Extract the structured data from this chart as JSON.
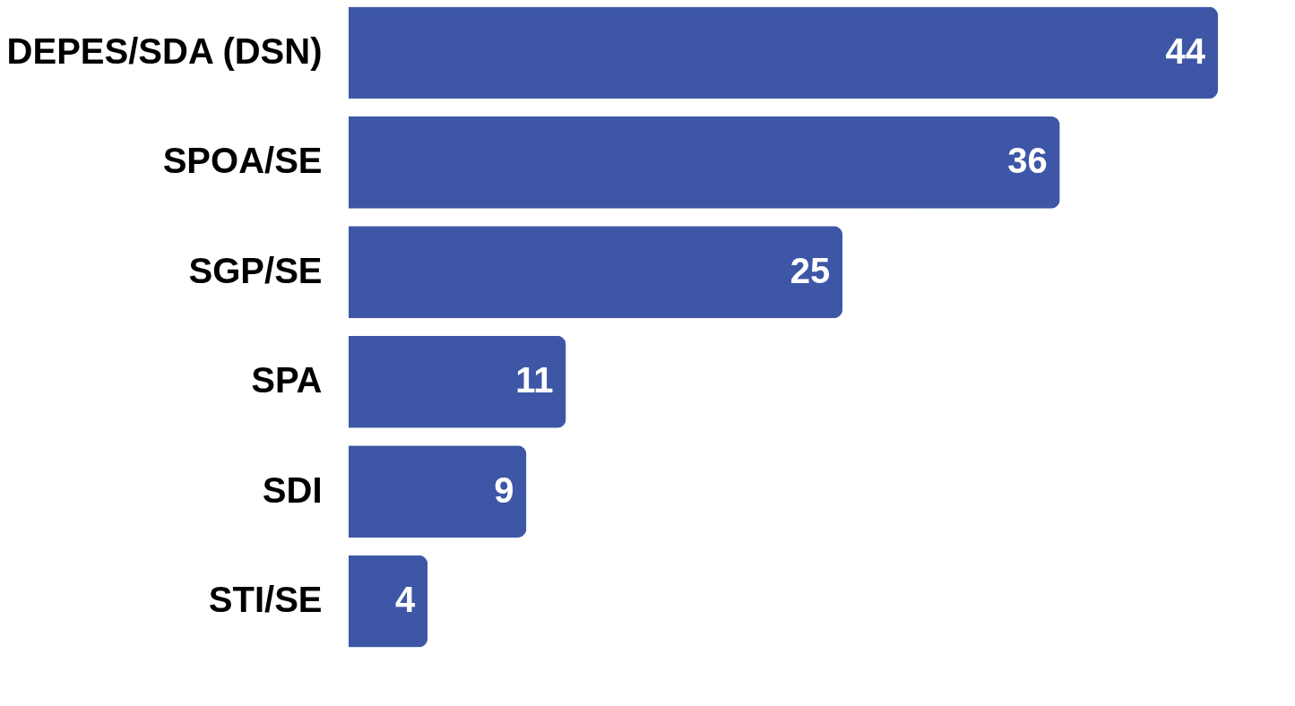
{
  "chart_data": {
    "type": "bar",
    "orientation": "horizontal",
    "categories": [
      "DEPES/SDA (DSN)",
      "SPOA/SE",
      "SGP/SE",
      "SPA",
      "SDI",
      "STI/SE"
    ],
    "values": [
      44,
      36,
      25,
      11,
      9,
      4
    ],
    "color": "#3d57a6",
    "data_labels": true
  }
}
